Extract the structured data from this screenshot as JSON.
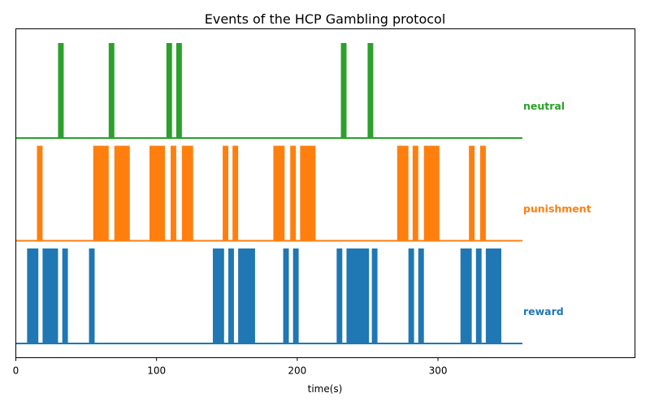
{
  "chart_data": {
    "type": "event-raster",
    "title": "Events of the HCP Gambling protocol",
    "xlabel": "time(s)",
    "ylabel": "",
    "xlim": [
      0,
      440
    ],
    "xticks": [
      0,
      100,
      200,
      300
    ],
    "x_end": 360,
    "series": [
      {
        "name": "neutral",
        "color": "#2ca02c",
        "events": [
          [
            30,
            34
          ],
          [
            66,
            70
          ],
          [
            107,
            111
          ],
          [
            114,
            118
          ],
          [
            231,
            235
          ],
          [
            250,
            254
          ]
        ]
      },
      {
        "name": "punishment",
        "color": "#ff7f0e",
        "events": [
          [
            15,
            19
          ],
          [
            55,
            66
          ],
          [
            70,
            81
          ],
          [
            95,
            106
          ],
          [
            110,
            114
          ],
          [
            118,
            126
          ],
          [
            147,
            151
          ],
          [
            154,
            158
          ],
          [
            183,
            191
          ],
          [
            195,
            199
          ],
          [
            202,
            213
          ],
          [
            271,
            279
          ],
          [
            282,
            286
          ],
          [
            290,
            301
          ],
          [
            322,
            326
          ],
          [
            330,
            334
          ]
        ]
      },
      {
        "name": "reward",
        "color": "#1f77b4",
        "events": [
          [
            8,
            16
          ],
          [
            19,
            30
          ],
          [
            33,
            37
          ],
          [
            52,
            56
          ],
          [
            140,
            148
          ],
          [
            151,
            155
          ],
          [
            158,
            170
          ],
          [
            190,
            194
          ],
          [
            197,
            201
          ],
          [
            228,
            232
          ],
          [
            235,
            251
          ],
          [
            253,
            257
          ],
          [
            279,
            283
          ],
          [
            286,
            290
          ],
          [
            316,
            324
          ],
          [
            327,
            331
          ],
          [
            334,
            345
          ]
        ]
      }
    ]
  }
}
